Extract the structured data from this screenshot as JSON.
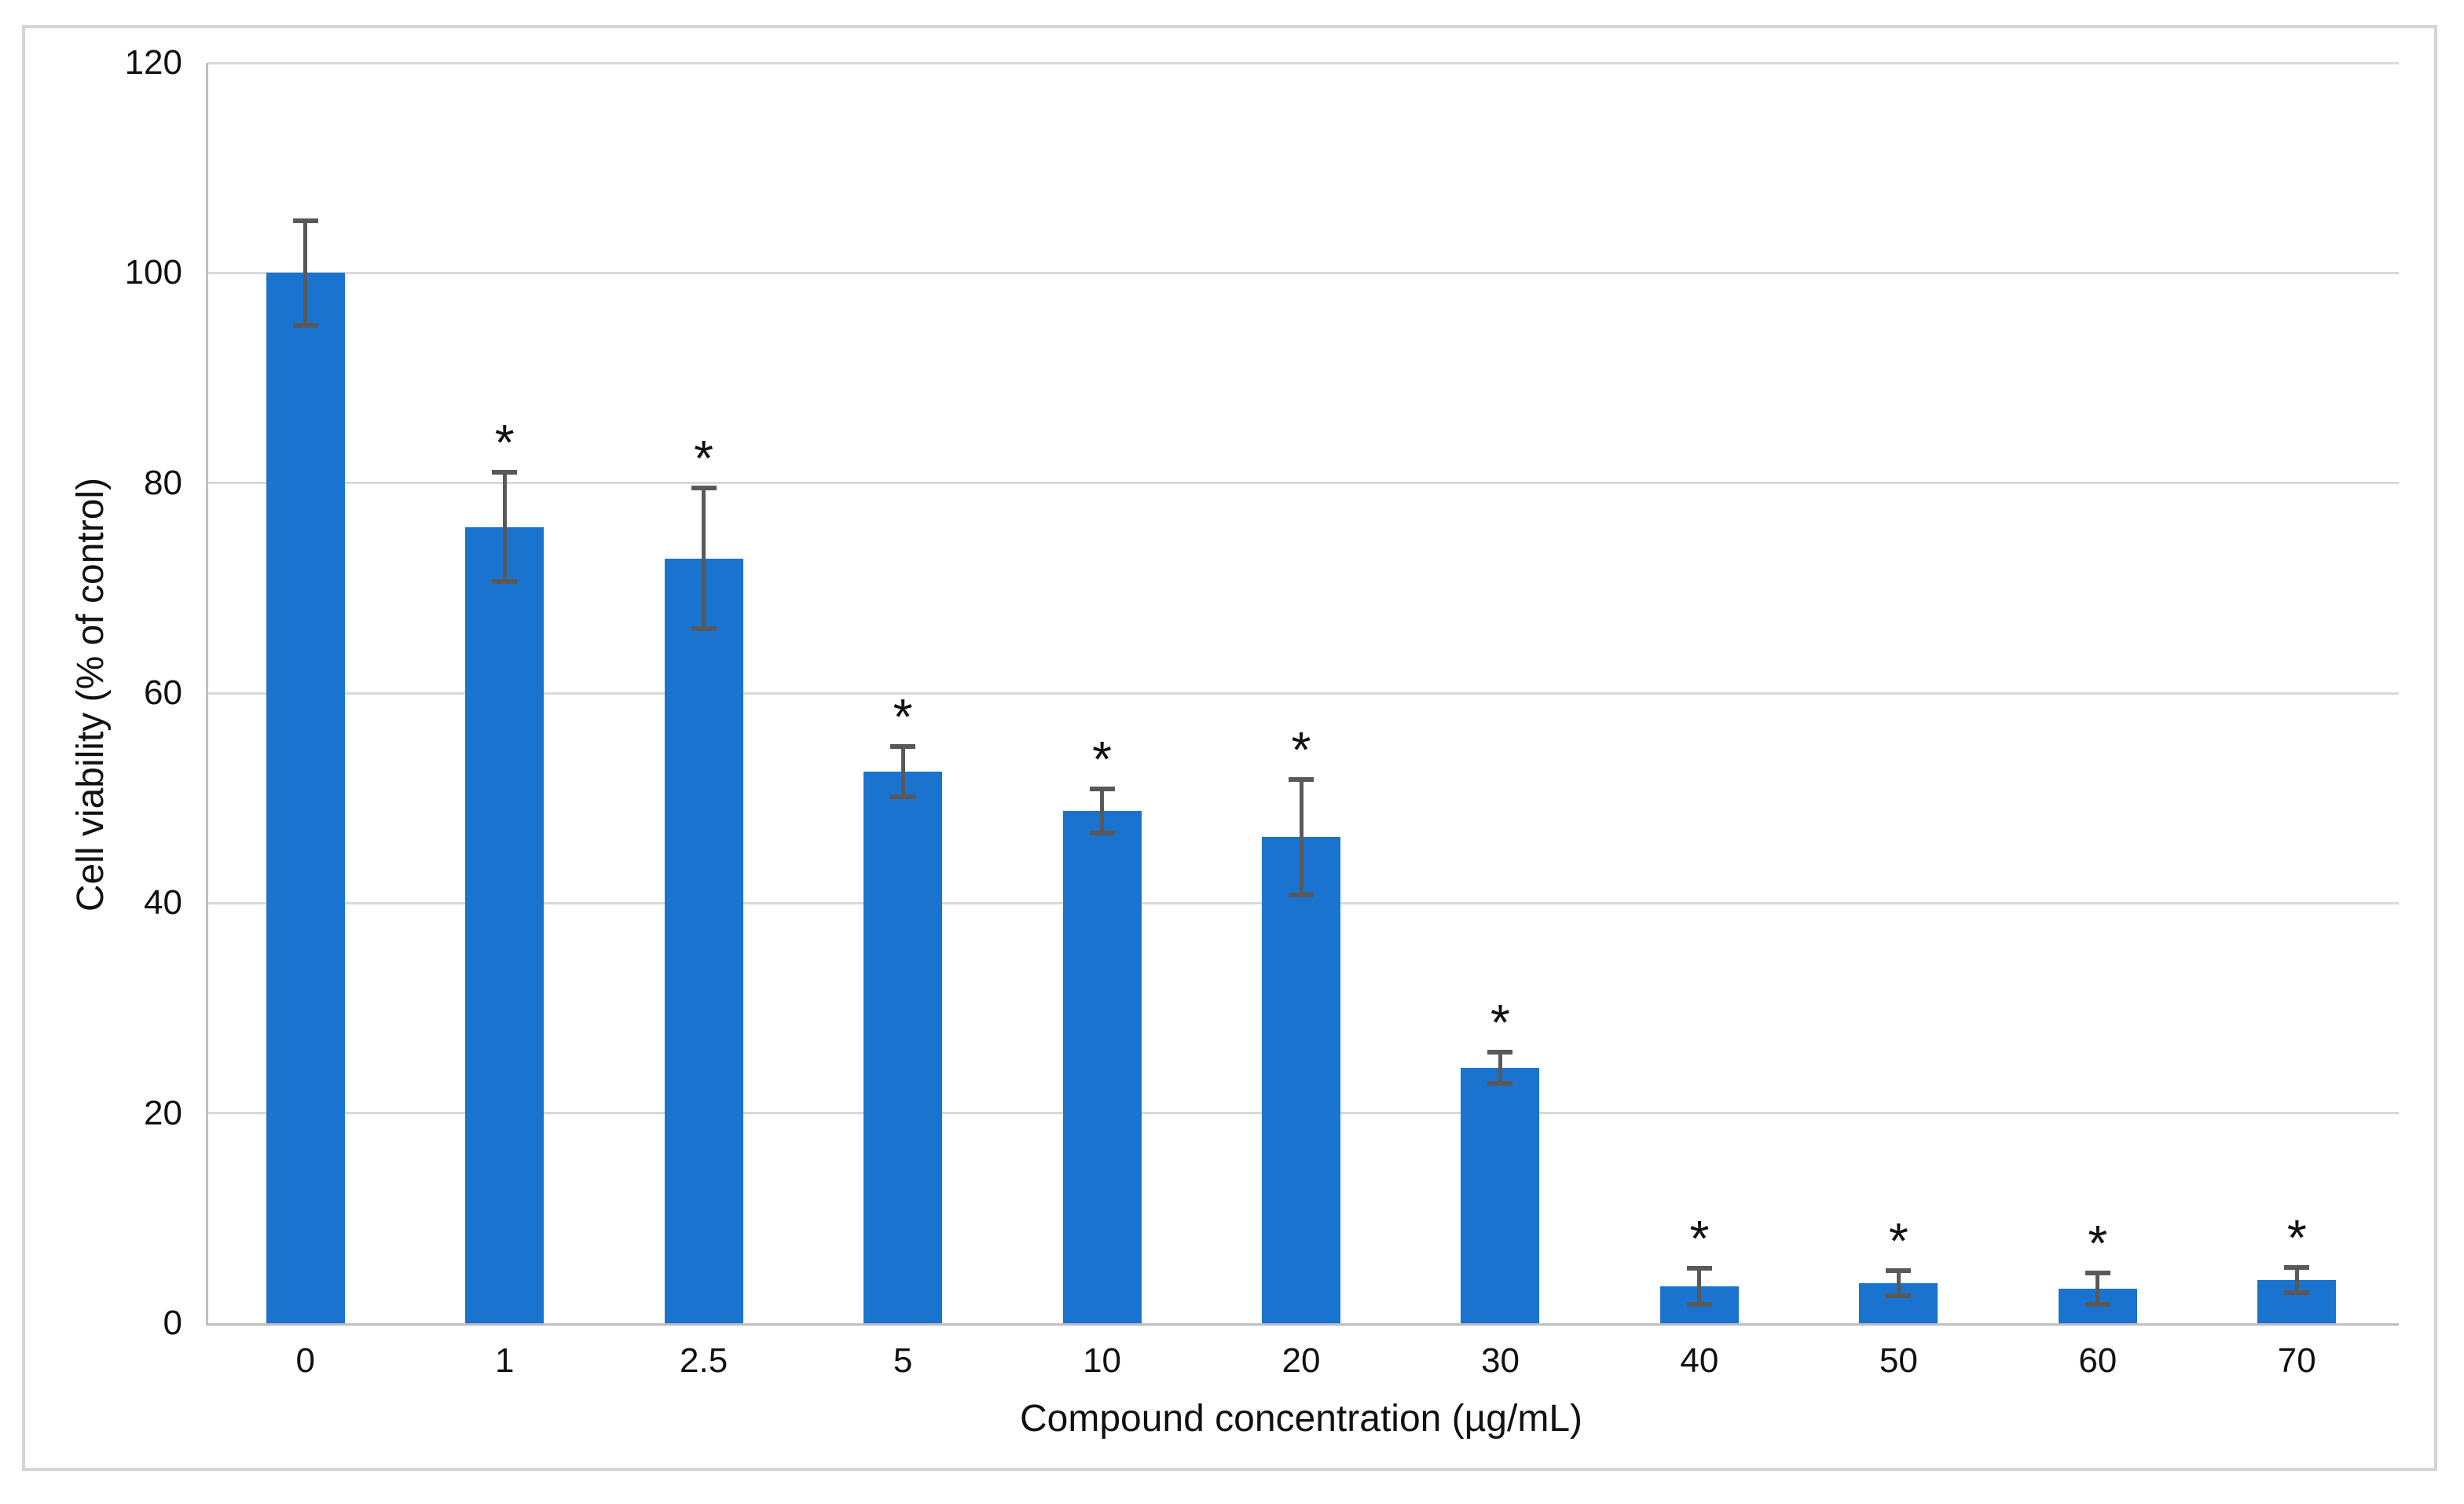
{
  "figure": {
    "background": "#ffffff",
    "border_color": "#d5d5d5"
  },
  "chart_data": {
    "type": "bar",
    "title": "",
    "xlabel": "Compound concentration (µg/mL)",
    "ylabel": "Cell viability (% of control)",
    "categories": [
      "0",
      "1",
      "2.5",
      "5",
      "10",
      "20",
      "30",
      "40",
      "50",
      "60",
      "70"
    ],
    "values": [
      100,
      75.8,
      72.8,
      52.5,
      48.8,
      46.3,
      24.3,
      3.5,
      3.8,
      3.3,
      4.1
    ],
    "error_bars": [
      5.0,
      5.2,
      6.7,
      2.4,
      2.1,
      5.5,
      1.5,
      1.7,
      1.2,
      1.5,
      1.2
    ],
    "significance": [
      null,
      "*",
      "*",
      "*",
      "*",
      "*",
      "*",
      "*",
      "*",
      "*",
      "*"
    ],
    "yticks": [
      0,
      20,
      40,
      60,
      80,
      100,
      120
    ],
    "ylim": [
      0,
      120
    ],
    "grid": "horizontal",
    "legend": null,
    "bar_color": "#1a73cf",
    "error_color": "#595959",
    "gridline_color": "#d9d9d9",
    "axis_color": "#bfbfbf",
    "text_color": "#111111"
  }
}
